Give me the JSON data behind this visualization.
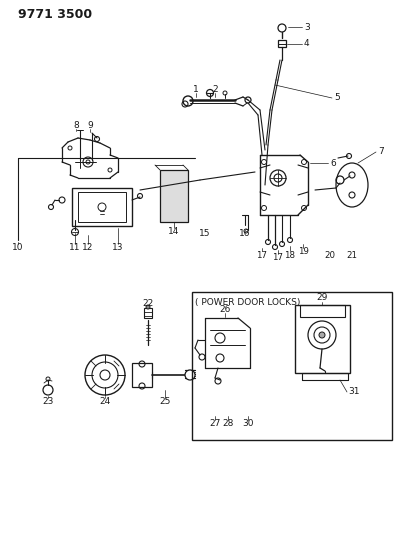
{
  "title": "9771 3500",
  "bg": "#ffffff",
  "lc": "#1a1a1a",
  "box_label": "( POWER DOOR LOCKS)",
  "figsize": [
    4.12,
    5.33
  ],
  "dpi": 100
}
